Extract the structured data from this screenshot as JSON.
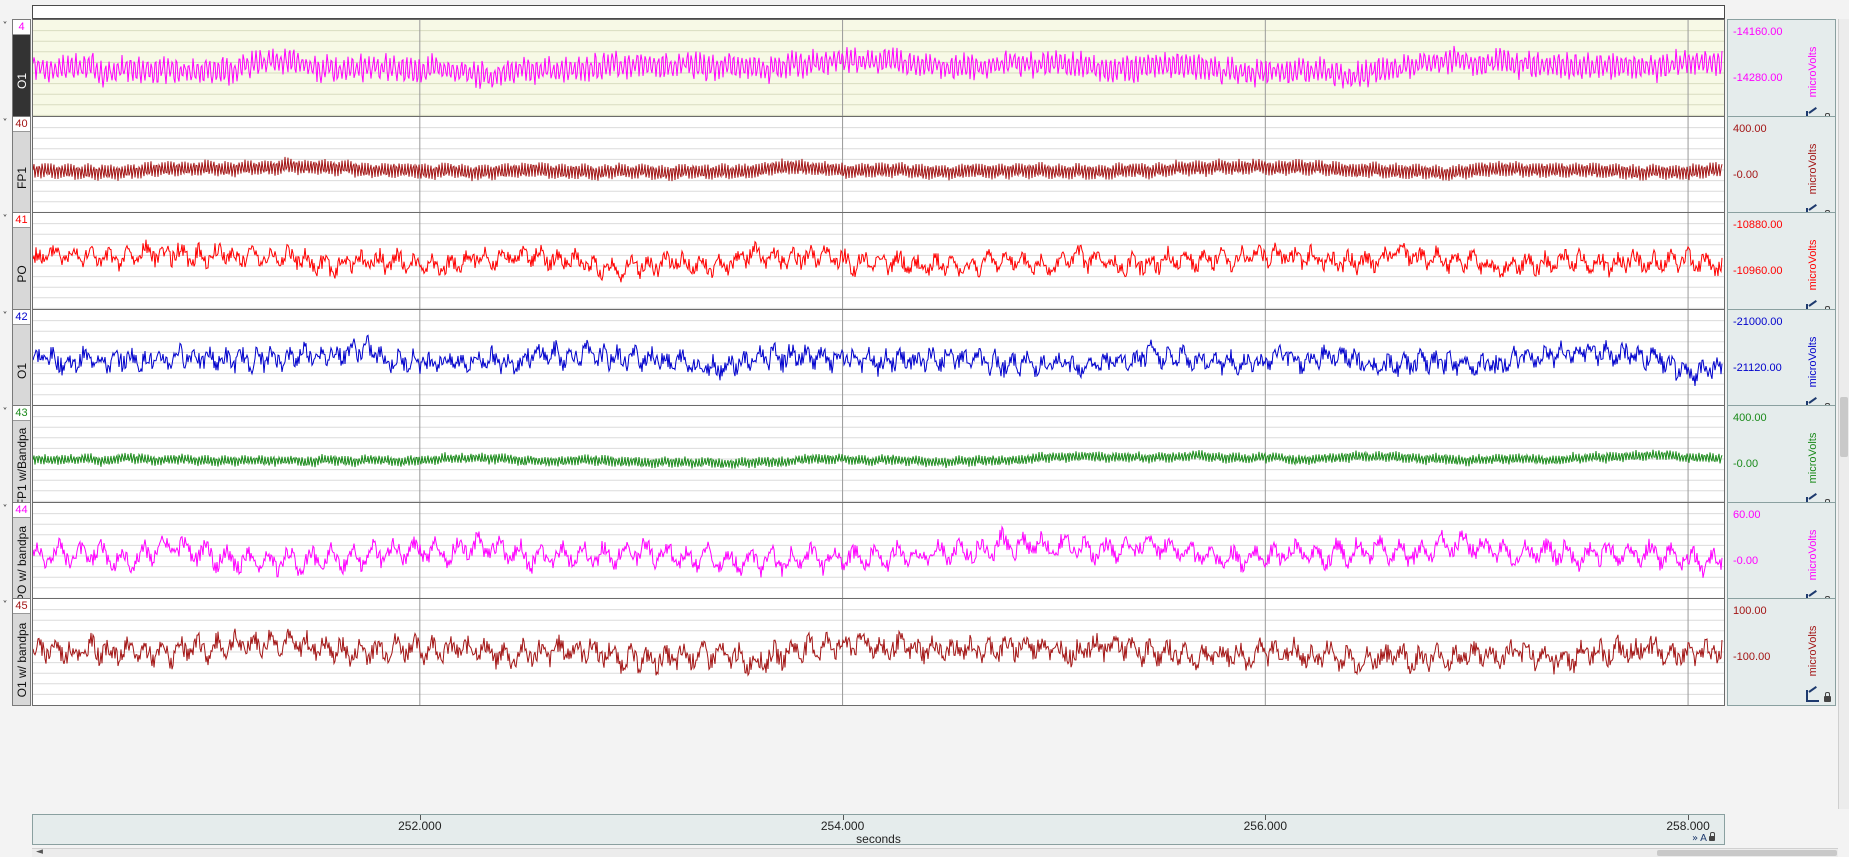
{
  "channels": [
    {
      "number": "4",
      "name": "O1",
      "color": "#ff00ff",
      "scale_top": "-14160.00",
      "scale_bottom": "-14280.00",
      "units": "microVolts",
      "active": true,
      "freq": 1.5,
      "noise": 0.45,
      "amp": 0.3,
      "center": 0.45,
      "wave": "osc"
    },
    {
      "number": "40",
      "name": "FP1",
      "color": "#a31515",
      "scale_top": "400.00",
      "scale_bottom": "-0.00",
      "units": "microVolts",
      "active": false,
      "freq": 2.2,
      "noise": 0.05,
      "amp": 0.14,
      "center": 0.5,
      "wave": "dense"
    },
    {
      "number": "41",
      "name": "PO",
      "color": "#ff0000",
      "scale_top": "-10880.00",
      "scale_bottom": "-10960.00",
      "units": "microVolts",
      "active": false,
      "freq": 0.35,
      "noise": 0.5,
      "amp": 0.22,
      "center": 0.45,
      "wave": "noisy"
    },
    {
      "number": "42",
      "name": "O1",
      "color": "#0000cc",
      "scale_top": "-21000.00",
      "scale_bottom": "-21120.00",
      "units": "microVolts",
      "active": false,
      "freq": 0.4,
      "noise": 0.55,
      "amp": 0.2,
      "center": 0.45,
      "wave": "noisy"
    },
    {
      "number": "43",
      "name": "FP1 w/Bandpa",
      "color": "#1a8a1a",
      "scale_top": "400.00",
      "scale_bottom": "-0.00",
      "units": "microVolts",
      "active": false,
      "freq": 2.2,
      "noise": 0.05,
      "amp": 0.09,
      "center": 0.5,
      "wave": "dense"
    },
    {
      "number": "44",
      "name": "PO w/ bandpa",
      "color": "#ff00ff",
      "scale_top": "60.00",
      "scale_bottom": "-0.00",
      "units": "microVolts",
      "active": false,
      "freq": 0.3,
      "noise": 0.5,
      "amp": 0.3,
      "center": 0.5,
      "wave": "noisy"
    },
    {
      "number": "45",
      "name": "O1 w/ bandpa",
      "color": "#a31515",
      "scale_top": "100.00",
      "scale_bottom": "-100.00",
      "units": "microVolts",
      "active": false,
      "freq": 0.35,
      "noise": 0.6,
      "amp": 0.24,
      "center": 0.5,
      "wave": "noisy"
    }
  ],
  "x_axis": {
    "ticks": [
      "252.000",
      "254.000",
      "256.000",
      "258.000"
    ],
    "unit": "seconds",
    "range": [
      250.17,
      258.17
    ],
    "tick_values": [
      252.0,
      254.0,
      256.0,
      258.0
    ]
  },
  "corner_label": "A"
}
